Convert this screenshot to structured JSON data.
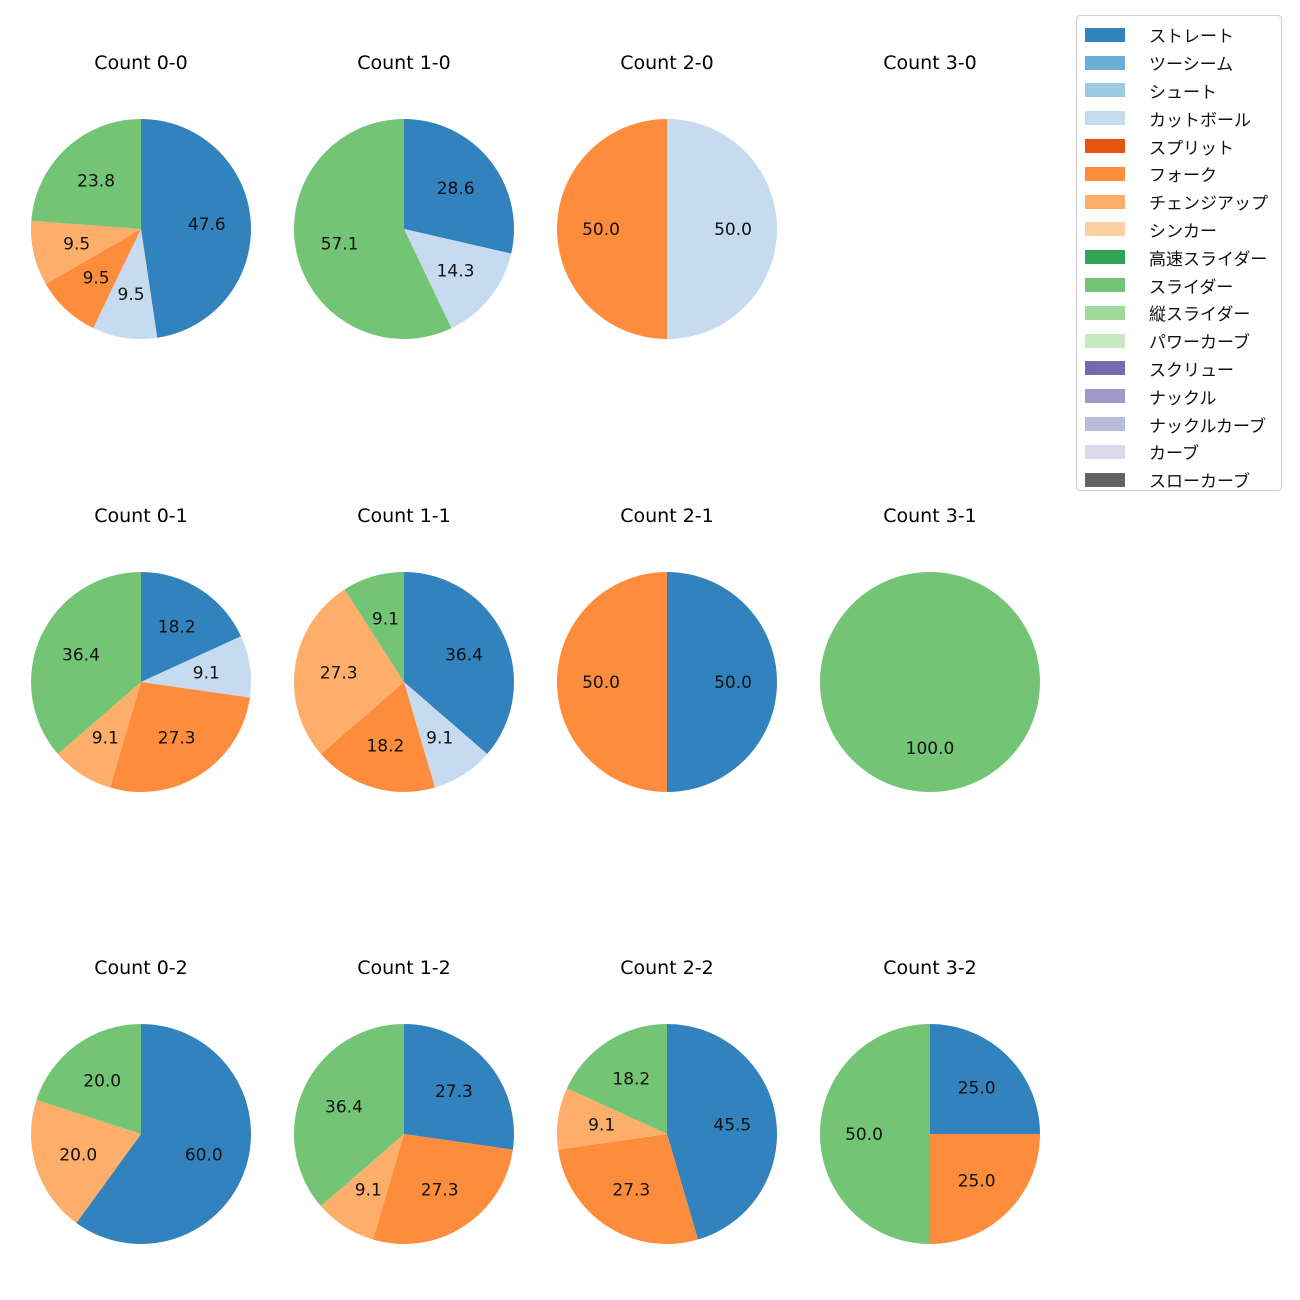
{
  "colors": {
    "ストレート": "#3182bd",
    "ツーシーム": "#6baed6",
    "シュート": "#9ecae1",
    "カットボール": "#c6dbef",
    "スプリット": "#e6550d",
    "フォーク": "#fd8d3c",
    "チェンジアップ": "#fdae6b",
    "シンカー": "#fdd0a2",
    "高速スライダー": "#31a354",
    "スライダー": "#74c476",
    "縦スライダー": "#a1d99b",
    "パワーカーブ": "#c7e9c0",
    "スクリュー": "#756bb1",
    "ナックル": "#9e9ac8",
    "ナックルカーブ": "#bcbddc",
    "カーブ": "#dadaeb",
    "スローカーブ": "#636363"
  },
  "legend": [
    "ストレート",
    "ツーシーム",
    "シュート",
    "カットボール",
    "スプリット",
    "フォーク",
    "チェンジアップ",
    "シンカー",
    "高速スライダー",
    "スライダー",
    "縦スライダー",
    "パワーカーブ",
    "スクリュー",
    "ナックル",
    "ナックルカーブ",
    "カーブ",
    "スローカーブ"
  ],
  "chart_data": [
    {
      "type": "pie",
      "title": "Count 0-0",
      "slices": [
        {
          "label": "ストレート",
          "value": 47.6
        },
        {
          "label": "カットボール",
          "value": 9.5
        },
        {
          "label": "フォーク",
          "value": 9.5
        },
        {
          "label": "チェンジアップ",
          "value": 9.5
        },
        {
          "label": "スライダー",
          "value": 23.8
        }
      ]
    },
    {
      "type": "pie",
      "title": "Count 1-0",
      "slices": [
        {
          "label": "ストレート",
          "value": 28.6
        },
        {
          "label": "カットボール",
          "value": 14.3
        },
        {
          "label": "スライダー",
          "value": 57.1
        }
      ]
    },
    {
      "type": "pie",
      "title": "Count 2-0",
      "slices": [
        {
          "label": "カットボール",
          "value": 50.0
        },
        {
          "label": "フォーク",
          "value": 50.0
        }
      ]
    },
    {
      "type": "pie",
      "title": "Count 3-0",
      "slices": []
    },
    {
      "type": "pie",
      "title": "Count 0-1",
      "slices": [
        {
          "label": "ストレート",
          "value": 18.2
        },
        {
          "label": "カットボール",
          "value": 9.1
        },
        {
          "label": "フォーク",
          "value": 27.3
        },
        {
          "label": "チェンジアップ",
          "value": 9.1
        },
        {
          "label": "スライダー",
          "value": 36.4
        }
      ]
    },
    {
      "type": "pie",
      "title": "Count 1-1",
      "slices": [
        {
          "label": "ストレート",
          "value": 36.4
        },
        {
          "label": "カットボール",
          "value": 9.1
        },
        {
          "label": "フォーク",
          "value": 18.2
        },
        {
          "label": "チェンジアップ",
          "value": 27.3
        },
        {
          "label": "スライダー",
          "value": 9.1
        }
      ]
    },
    {
      "type": "pie",
      "title": "Count 2-1",
      "slices": [
        {
          "label": "ストレート",
          "value": 50.0
        },
        {
          "label": "フォーク",
          "value": 50.0
        }
      ]
    },
    {
      "type": "pie",
      "title": "Count 3-1",
      "slices": [
        {
          "label": "スライダー",
          "value": 100.0
        }
      ]
    },
    {
      "type": "pie",
      "title": "Count 0-2",
      "slices": [
        {
          "label": "ストレート",
          "value": 60.0
        },
        {
          "label": "チェンジアップ",
          "value": 20.0
        },
        {
          "label": "スライダー",
          "value": 20.0
        }
      ]
    },
    {
      "type": "pie",
      "title": "Count 1-2",
      "slices": [
        {
          "label": "ストレート",
          "value": 27.3
        },
        {
          "label": "フォーク",
          "value": 27.3
        },
        {
          "label": "チェンジアップ",
          "value": 9.1
        },
        {
          "label": "スライダー",
          "value": 36.4
        }
      ]
    },
    {
      "type": "pie",
      "title": "Count 2-2",
      "slices": [
        {
          "label": "ストレート",
          "value": 45.5
        },
        {
          "label": "フォーク",
          "value": 27.3
        },
        {
          "label": "チェンジアップ",
          "value": 9.1
        },
        {
          "label": "スライダー",
          "value": 18.2
        }
      ]
    },
    {
      "type": "pie",
      "title": "Count 3-2",
      "slices": [
        {
          "label": "ストレート",
          "value": 25.0
        },
        {
          "label": "フォーク",
          "value": 25.0
        },
        {
          "label": "スライダー",
          "value": 50.0
        }
      ]
    }
  ]
}
